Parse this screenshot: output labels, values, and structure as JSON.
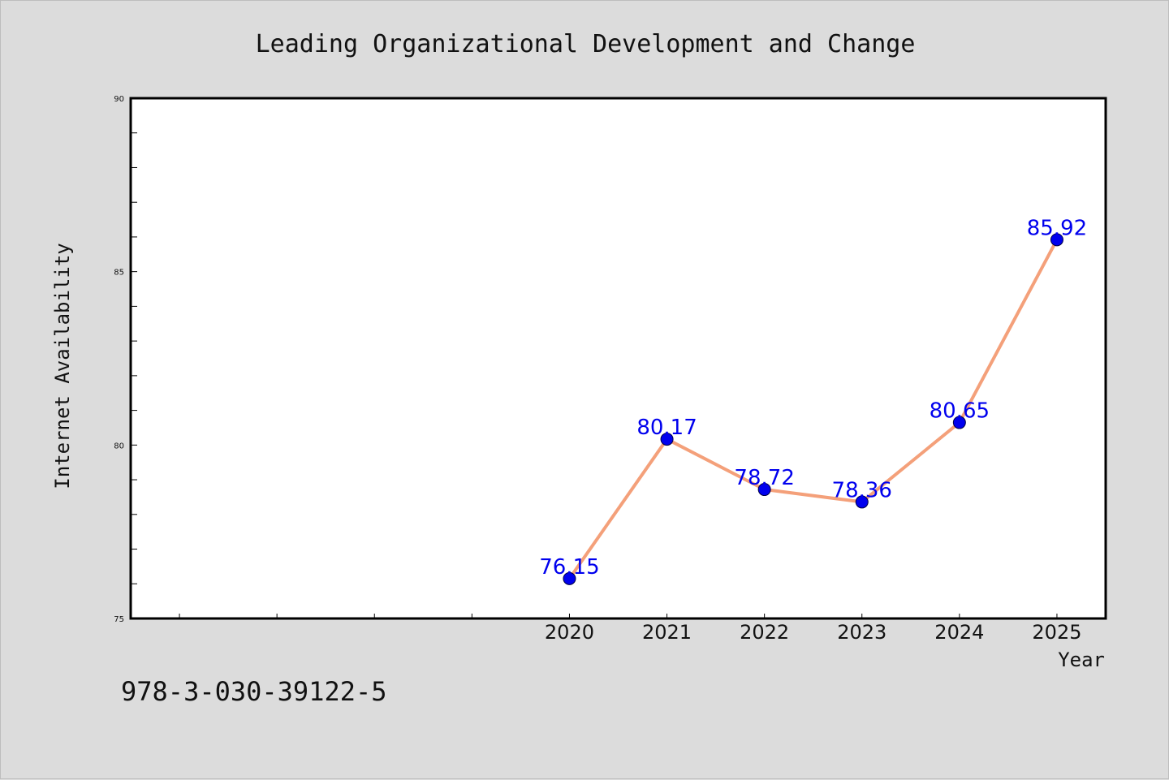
{
  "caption": "978-3-030-39122-5",
  "chart_data": {
    "type": "line",
    "title": "Leading Organizational Development and Change",
    "xlabel": "Year",
    "ylabel": "Internet Availability",
    "x": [
      2020,
      2021,
      2022,
      2023,
      2024,
      2025
    ],
    "values": [
      76.15,
      80.17,
      78.72,
      78.36,
      80.65,
      85.92
    ],
    "value_labels": [
      "76.15",
      "80.17",
      "78.72",
      "78.36",
      "80.65",
      "85.92"
    ],
    "xlim": [
      2015.5,
      2025.5
    ],
    "ylim": [
      75,
      90
    ],
    "y_ticks": [
      75,
      80,
      85,
      90
    ],
    "x_ticks": [
      2020,
      2021,
      2022,
      2023,
      2024,
      2025
    ],
    "grid": false,
    "line_color": "#f4a07a",
    "marker_color": "#0000ee",
    "label_color": "#0000ee"
  }
}
